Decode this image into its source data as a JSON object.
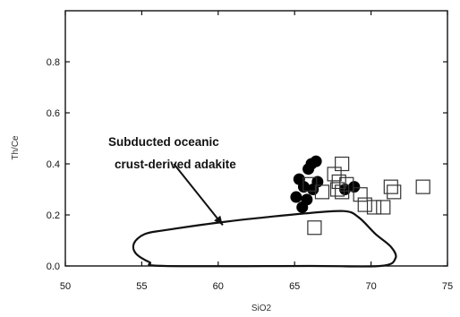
{
  "chart_data": {
    "type": "scatter",
    "title": "",
    "xlabel": "SiO2",
    "ylabel": "Th/Ce",
    "xlim": [
      50,
      75
    ],
    "ylim": [
      0,
      1.0
    ],
    "xticks": [
      50,
      55,
      60,
      65,
      70,
      75
    ],
    "yticks": [
      0.0,
      0.2,
      0.4,
      0.6,
      0.8
    ],
    "grid": false,
    "legend": "none",
    "colors": {
      "axis": "#111111",
      "filled": "#000000",
      "open": "#333333"
    },
    "series": [
      {
        "marker": "filled-circle",
        "points": [
          [
            65.1,
            0.27
          ],
          [
            65.3,
            0.34
          ],
          [
            65.6,
            0.31
          ],
          [
            65.8,
            0.26
          ],
          [
            65.9,
            0.38
          ],
          [
            66.1,
            0.4
          ],
          [
            66.4,
            0.41
          ],
          [
            66.2,
            0.3
          ],
          [
            65.5,
            0.23
          ],
          [
            66.5,
            0.33
          ],
          [
            68.3,
            0.3
          ],
          [
            68.9,
            0.31
          ]
        ]
      },
      {
        "marker": "open-square",
        "points": [
          [
            66.0,
            0.32
          ],
          [
            66.8,
            0.29
          ],
          [
            67.6,
            0.36
          ],
          [
            67.9,
            0.33
          ],
          [
            68.1,
            0.4
          ],
          [
            68.1,
            0.29
          ],
          [
            68.4,
            0.32
          ],
          [
            67.8,
            0.3
          ],
          [
            69.3,
            0.28
          ],
          [
            69.6,
            0.24
          ],
          [
            70.2,
            0.23
          ],
          [
            70.8,
            0.23
          ],
          [
            71.3,
            0.31
          ],
          [
            71.5,
            0.29
          ],
          [
            73.4,
            0.31
          ],
          [
            66.3,
            0.15
          ]
        ]
      }
    ],
    "region": {
      "label_lines": [
        "Subducted oceanic",
        "crust-derived adakite"
      ],
      "outline": [
        [
          54.5,
          0.09
        ],
        [
          55.2,
          0.125
        ],
        [
          56.5,
          0.14
        ],
        [
          60.0,
          0.17
        ],
        [
          63.0,
          0.19
        ],
        [
          65.5,
          0.205
        ],
        [
          68.2,
          0.215
        ],
        [
          69.2,
          0.19
        ],
        [
          70.3,
          0.125
        ],
        [
          71.3,
          0.075
        ],
        [
          71.6,
          0.03
        ],
        [
          70.6,
          0.0
        ],
        [
          66.0,
          0.0
        ],
        [
          56.5,
          0.0
        ],
        [
          55.5,
          0.015
        ],
        [
          54.6,
          0.05
        ]
      ],
      "arrow": {
        "from": [
          57.1,
          0.4
        ],
        "to": [
          60.3,
          0.16
        ]
      }
    }
  }
}
